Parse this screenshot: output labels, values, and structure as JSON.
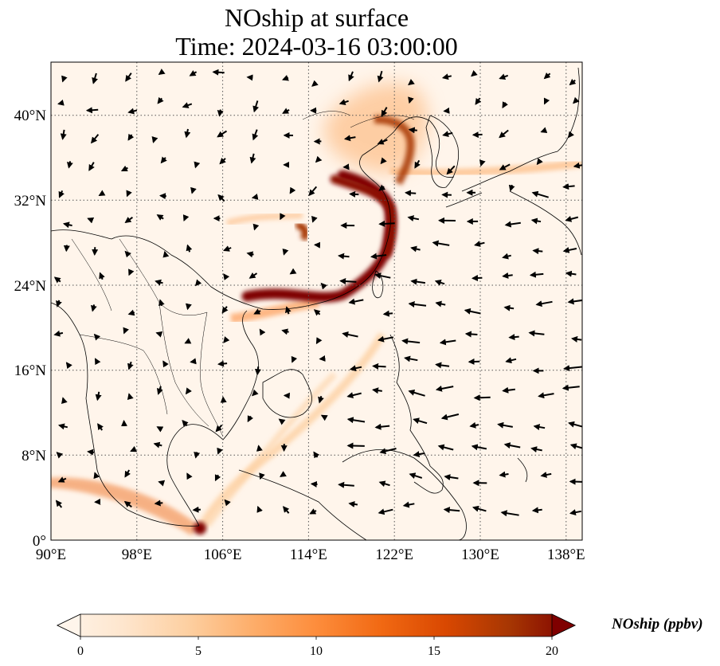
{
  "title": {
    "line1": "NOship at surface",
    "line2": "Time: 2024-03-16 03:00:00"
  },
  "map": {
    "lon_range": [
      90,
      139.5
    ],
    "lat_range": [
      0,
      45
    ],
    "x_ticks": [
      "90°E",
      "98°E",
      "106°E",
      "114°E",
      "122°E",
      "130°E",
      "138°E"
    ],
    "y_ticks": [
      "0°",
      "8°N",
      "16°N",
      "24°N",
      "32°N",
      "40°N"
    ],
    "gridlines": true,
    "wind_vectors": true
  },
  "colorbar": {
    "label": "NOship (ppbv)",
    "ticks": [
      "0",
      "5",
      "10",
      "15",
      "20"
    ],
    "range": [
      0,
      20
    ],
    "extend": "both",
    "colors": [
      "#fff5eb",
      "#fee6ce",
      "#fdd0a2",
      "#fdae6b",
      "#fd8d3c",
      "#f16913",
      "#d94801",
      "#a63603",
      "#7f0000"
    ]
  }
}
